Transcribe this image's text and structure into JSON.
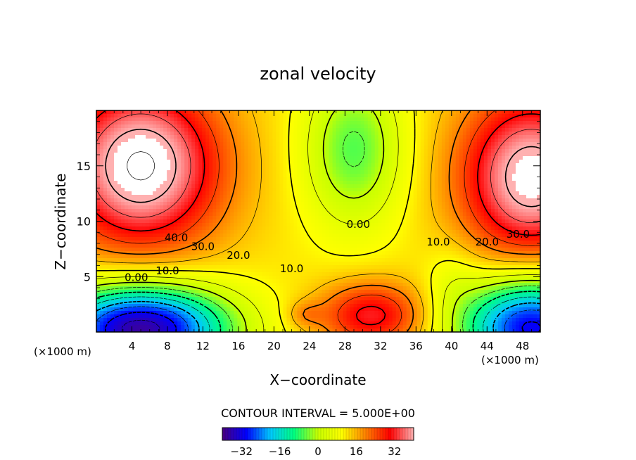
{
  "chart_data": {
    "type": "contour",
    "title": "zonal velocity",
    "xlabel": "X−coordinate",
    "ylabel": "Z−coordinate",
    "x_unit_left": "(×1000 m)",
    "x_unit_right": "(×1000 m)",
    "xlim": [
      0,
      50
    ],
    "ylim": [
      0,
      20
    ],
    "x_ticks": [
      4,
      8,
      12,
      16,
      20,
      24,
      28,
      32,
      36,
      40,
      44,
      48
    ],
    "x_tick_labels": [
      "4",
      "8",
      "12",
      "16",
      "20",
      "24",
      "28",
      "32",
      "36",
      "40",
      "44",
      "48"
    ],
    "y_ticks": [
      5,
      10,
      15
    ],
    "y_tick_labels": [
      "5",
      "10",
      "15"
    ],
    "contour_interval_text": "CONTOUR INTERVAL = 5.000E+00",
    "contour_interval": 5,
    "contour_labels": [
      {
        "text": "40.0",
        "x": 9,
        "y": 8.2
      },
      {
        "text": "30.0",
        "x": 12,
        "y": 7.4
      },
      {
        "text": "20.0",
        "x": 16,
        "y": 6.6
      },
      {
        "text": "10.0",
        "x": 8,
        "y": 5.2
      },
      {
        "text": "0.00",
        "x": 4.5,
        "y": 4.6
      },
      {
        "text": "10.0",
        "x": 22,
        "y": 5.4
      },
      {
        "text": "0.00",
        "x": 29.5,
        "y": 9.4
      },
      {
        "text": "10.0",
        "x": 38.5,
        "y": 7.8
      },
      {
        "text": "20.0",
        "x": 44,
        "y": 7.8
      },
      {
        "text": "30.0",
        "x": 47.5,
        "y": 8.5
      }
    ],
    "colorbar": {
      "range": [
        -40,
        40
      ],
      "ticks": [
        -32,
        -16,
        0,
        16,
        32
      ],
      "tick_labels": [
        "−32",
        "−16",
        "0",
        "16",
        "32"
      ],
      "colors": [
        "#4a0080",
        "#0000ff",
        "#00c8ff",
        "#00ff80",
        "#c8ff00",
        "#ffff00",
        "#ff8000",
        "#ff0000",
        "#ffb0b0"
      ]
    }
  }
}
